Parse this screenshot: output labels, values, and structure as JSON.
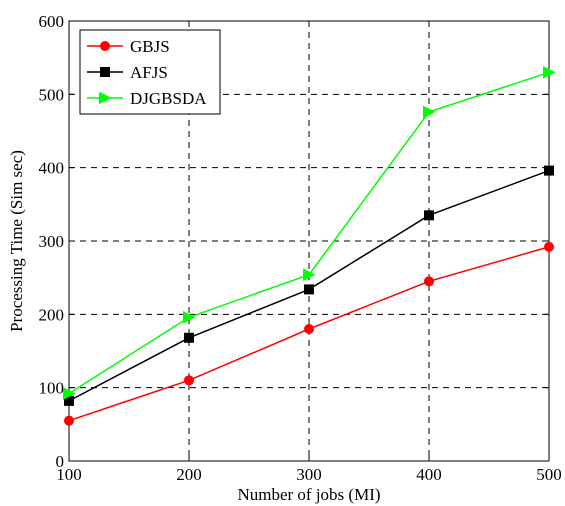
{
  "chart_data": {
    "type": "line",
    "title": "",
    "xlabel": "Number of jobs (MI)",
    "ylabel": "Processing Time (Sim sec)",
    "x": [
      100,
      200,
      300,
      400,
      500
    ],
    "xlim": [
      100,
      500
    ],
    "ylim": [
      0,
      600
    ],
    "xticks": [
      100,
      200,
      300,
      400,
      500
    ],
    "yticks": [
      0,
      100,
      200,
      300,
      400,
      500,
      600
    ],
    "grid": true,
    "legend_position": "top-left",
    "series": [
      {
        "name": "GBJS",
        "color": "#ff0000",
        "marker": "circle",
        "values": [
          55,
          110,
          180,
          245,
          292
        ]
      },
      {
        "name": "AFJS",
        "color": "#000000",
        "marker": "square",
        "values": [
          82,
          168,
          234,
          335,
          396
        ]
      },
      {
        "name": "DJGBSDA",
        "color": "#00ff00",
        "marker": "triangle-right",
        "values": [
          92,
          196,
          254,
          476,
          530
        ]
      }
    ]
  }
}
